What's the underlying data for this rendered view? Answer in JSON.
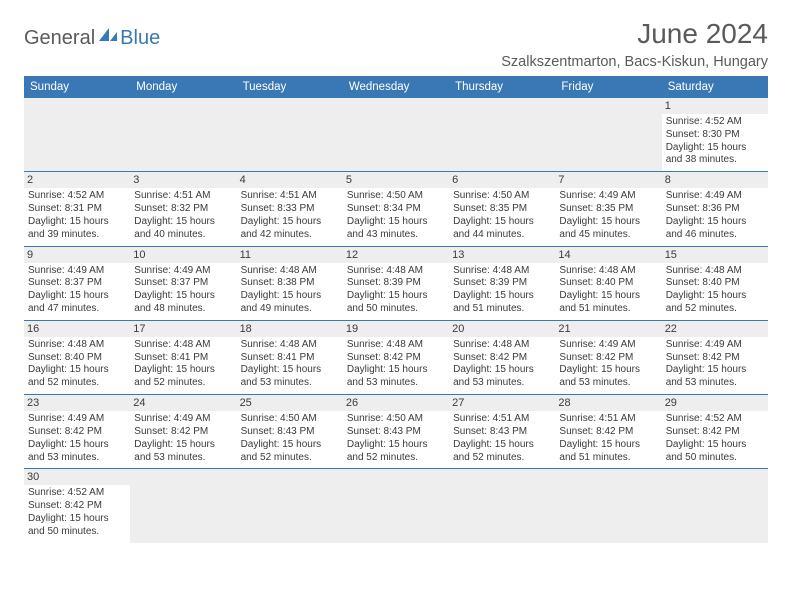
{
  "brand": {
    "part1": "General",
    "part2": "Blue"
  },
  "title": "June 2024",
  "location": "Szalkszentmarton, Bacs-Kiskun, Hungary",
  "colors": {
    "header_bg": "#3a78b5",
    "header_text": "#ffffff",
    "daynum_bg": "#eeeeee",
    "text": "#3b3b3b",
    "rule": "#3a78b5",
    "page_bg": "#ffffff",
    "brand_gray": "#5a5a5a",
    "brand_blue": "#3a78b5"
  },
  "font": {
    "family": "Arial",
    "body_size_pt": 7.5,
    "weekday_size_pt": 9,
    "title_size_pt": 21,
    "location_size_pt": 11
  },
  "weekdays": [
    "Sunday",
    "Monday",
    "Tuesday",
    "Wednesday",
    "Thursday",
    "Friday",
    "Saturday"
  ],
  "labels": {
    "sunrise": "Sunrise:",
    "sunset": "Sunset:",
    "daylight": "Daylight:"
  },
  "weeks": [
    [
      null,
      null,
      null,
      null,
      null,
      null,
      {
        "n": "1",
        "sr": "4:52 AM",
        "ss": "8:30 PM",
        "dl": "15 hours and 38 minutes."
      }
    ],
    [
      {
        "n": "2",
        "sr": "4:52 AM",
        "ss": "8:31 PM",
        "dl": "15 hours and 39 minutes."
      },
      {
        "n": "3",
        "sr": "4:51 AM",
        "ss": "8:32 PM",
        "dl": "15 hours and 40 minutes."
      },
      {
        "n": "4",
        "sr": "4:51 AM",
        "ss": "8:33 PM",
        "dl": "15 hours and 42 minutes."
      },
      {
        "n": "5",
        "sr": "4:50 AM",
        "ss": "8:34 PM",
        "dl": "15 hours and 43 minutes."
      },
      {
        "n": "6",
        "sr": "4:50 AM",
        "ss": "8:35 PM",
        "dl": "15 hours and 44 minutes."
      },
      {
        "n": "7",
        "sr": "4:49 AM",
        "ss": "8:35 PM",
        "dl": "15 hours and 45 minutes."
      },
      {
        "n": "8",
        "sr": "4:49 AM",
        "ss": "8:36 PM",
        "dl": "15 hours and 46 minutes."
      }
    ],
    [
      {
        "n": "9",
        "sr": "4:49 AM",
        "ss": "8:37 PM",
        "dl": "15 hours and 47 minutes."
      },
      {
        "n": "10",
        "sr": "4:49 AM",
        "ss": "8:37 PM",
        "dl": "15 hours and 48 minutes."
      },
      {
        "n": "11",
        "sr": "4:48 AM",
        "ss": "8:38 PM",
        "dl": "15 hours and 49 minutes."
      },
      {
        "n": "12",
        "sr": "4:48 AM",
        "ss": "8:39 PM",
        "dl": "15 hours and 50 minutes."
      },
      {
        "n": "13",
        "sr": "4:48 AM",
        "ss": "8:39 PM",
        "dl": "15 hours and 51 minutes."
      },
      {
        "n": "14",
        "sr": "4:48 AM",
        "ss": "8:40 PM",
        "dl": "15 hours and 51 minutes."
      },
      {
        "n": "15",
        "sr": "4:48 AM",
        "ss": "8:40 PM",
        "dl": "15 hours and 52 minutes."
      }
    ],
    [
      {
        "n": "16",
        "sr": "4:48 AM",
        "ss": "8:40 PM",
        "dl": "15 hours and 52 minutes."
      },
      {
        "n": "17",
        "sr": "4:48 AM",
        "ss": "8:41 PM",
        "dl": "15 hours and 52 minutes."
      },
      {
        "n": "18",
        "sr": "4:48 AM",
        "ss": "8:41 PM",
        "dl": "15 hours and 53 minutes."
      },
      {
        "n": "19",
        "sr": "4:48 AM",
        "ss": "8:42 PM",
        "dl": "15 hours and 53 minutes."
      },
      {
        "n": "20",
        "sr": "4:48 AM",
        "ss": "8:42 PM",
        "dl": "15 hours and 53 minutes."
      },
      {
        "n": "21",
        "sr": "4:49 AM",
        "ss": "8:42 PM",
        "dl": "15 hours and 53 minutes."
      },
      {
        "n": "22",
        "sr": "4:49 AM",
        "ss": "8:42 PM",
        "dl": "15 hours and 53 minutes."
      }
    ],
    [
      {
        "n": "23",
        "sr": "4:49 AM",
        "ss": "8:42 PM",
        "dl": "15 hours and 53 minutes."
      },
      {
        "n": "24",
        "sr": "4:49 AM",
        "ss": "8:42 PM",
        "dl": "15 hours and 53 minutes."
      },
      {
        "n": "25",
        "sr": "4:50 AM",
        "ss": "8:43 PM",
        "dl": "15 hours and 52 minutes."
      },
      {
        "n": "26",
        "sr": "4:50 AM",
        "ss": "8:43 PM",
        "dl": "15 hours and 52 minutes."
      },
      {
        "n": "27",
        "sr": "4:51 AM",
        "ss": "8:43 PM",
        "dl": "15 hours and 52 minutes."
      },
      {
        "n": "28",
        "sr": "4:51 AM",
        "ss": "8:42 PM",
        "dl": "15 hours and 51 minutes."
      },
      {
        "n": "29",
        "sr": "4:52 AM",
        "ss": "8:42 PM",
        "dl": "15 hours and 50 minutes."
      }
    ],
    [
      {
        "n": "30",
        "sr": "4:52 AM",
        "ss": "8:42 PM",
        "dl": "15 hours and 50 minutes."
      },
      null,
      null,
      null,
      null,
      null,
      null
    ]
  ]
}
